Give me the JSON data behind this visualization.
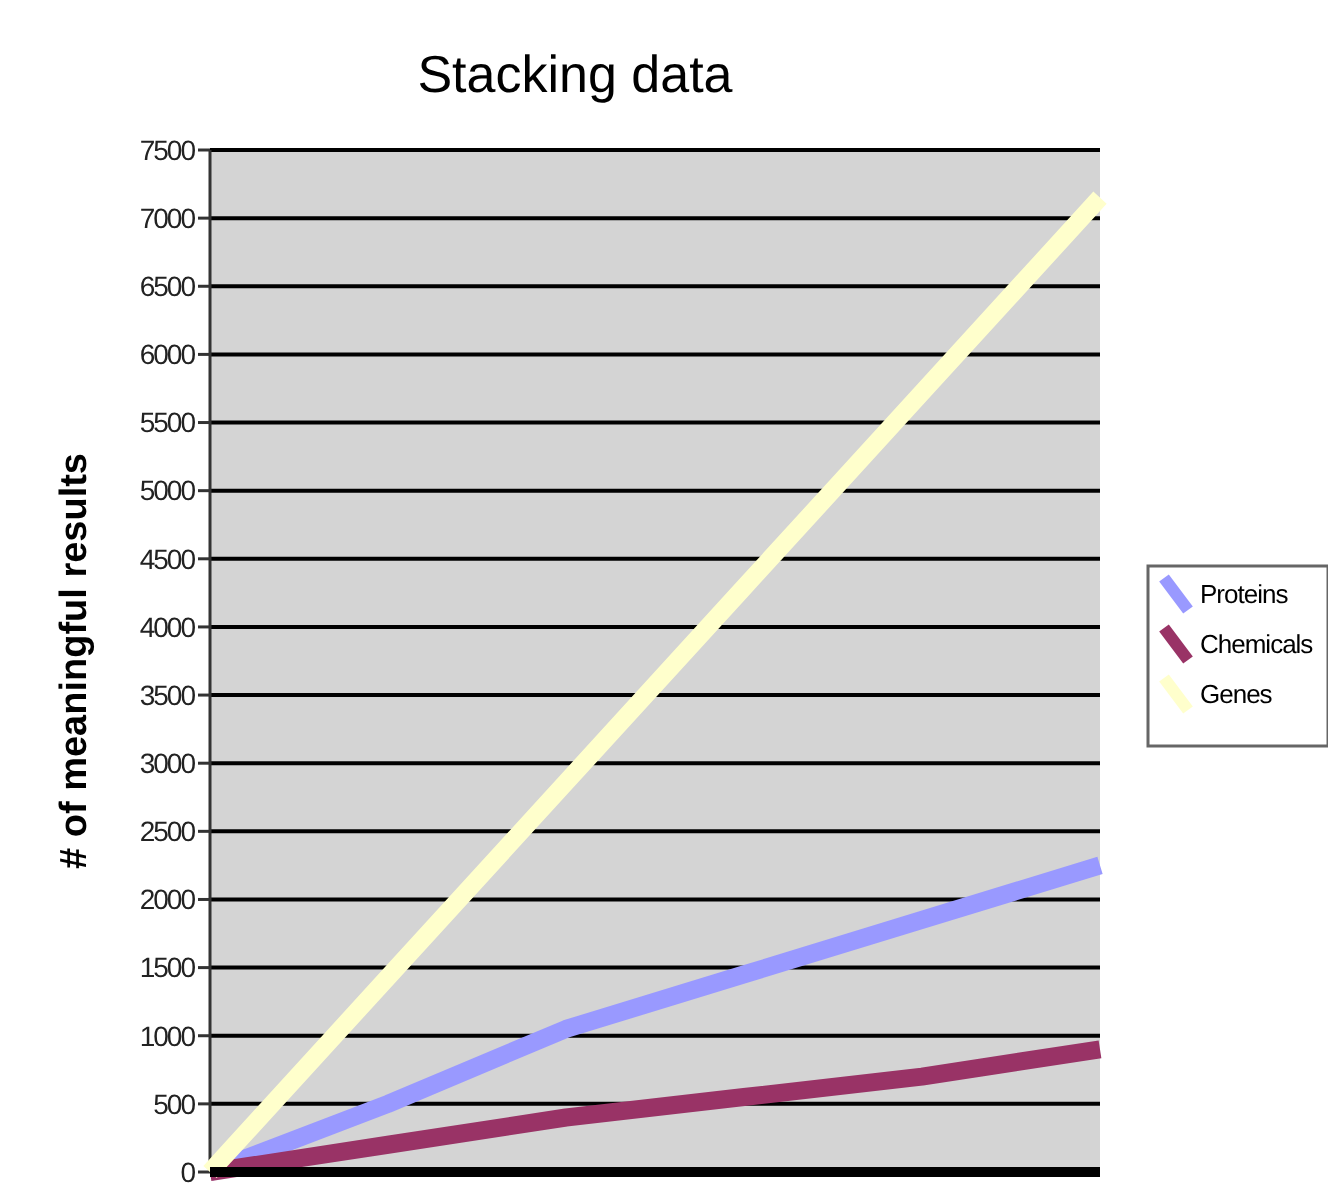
{
  "chart_data": {
    "type": "line",
    "title": "Stacking data",
    "ylabel": "# of meaningful results",
    "categories": [
      null,
      null,
      null,
      null,
      null,
      null
    ],
    "series": [
      {
        "name": "Proteins",
        "color": "#9999ff",
        "values": [
          0,
          500,
          1050,
          1450,
          1850,
          2250
        ]
      },
      {
        "name": "Chemicals",
        "color": "#993366",
        "values": [
          0,
          200,
          400,
          550,
          700,
          900
        ]
      },
      {
        "name": "Genes",
        "color": "#ffffcc",
        "values": [
          0,
          1430,
          2860,
          4290,
          5720,
          7150
        ]
      }
    ],
    "ylim": [
      0,
      7500
    ],
    "yticks": [
      0,
      500,
      1000,
      1500,
      2000,
      2500,
      3000,
      3500,
      4000,
      4500,
      5000,
      5500,
      6000,
      6500,
      7000,
      7500
    ],
    "grid": "y",
    "legend": "right",
    "marker": "none",
    "line_style": "solid"
  }
}
